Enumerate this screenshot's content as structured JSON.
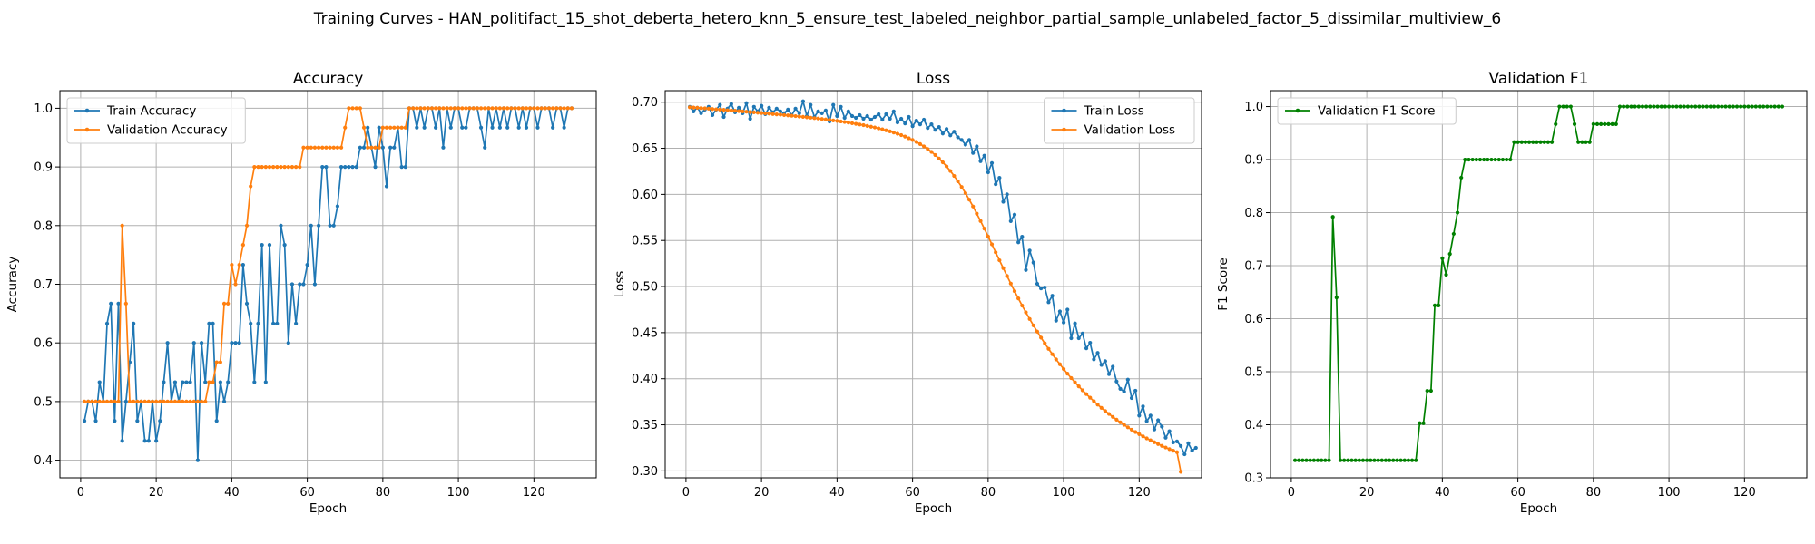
{
  "suptitle": "Training Curves - HAN_politifact_15_shot_deberta_hetero_knn_5_ensure_test_labeled_neighbor_partial_sample_unlabeled_factor_5_dissimilar_multiview_6",
  "colors": {
    "train": "#1f77b4",
    "val": "#ff7f0e",
    "f1": "#008000",
    "grid": "#b0b0b0"
  },
  "chart_data": [
    {
      "type": "line",
      "title": "Accuracy",
      "xlabel": "Epoch",
      "ylabel": "Accuracy",
      "xlim": [
        -5.5,
        136.5
      ],
      "ylim": [
        0.37,
        1.03
      ],
      "xticks": [
        0,
        20,
        40,
        60,
        80,
        100,
        120
      ],
      "yticks": [
        0.4,
        0.5,
        0.6,
        0.7,
        0.8,
        0.9,
        1.0
      ],
      "legend_loc": "upper-left",
      "x_start": 1,
      "series": [
        {
          "name": "Train Accuracy",
          "color": "#1f77b4",
          "values": [
            0.467,
            0.5,
            0.5,
            0.467,
            0.533,
            0.5,
            0.633,
            0.667,
            0.467,
            0.667,
            0.433,
            0.5,
            0.567,
            0.633,
            0.467,
            0.5,
            0.433,
            0.433,
            0.5,
            0.433,
            0.467,
            0.533,
            0.6,
            0.5,
            0.533,
            0.5,
            0.533,
            0.533,
            0.533,
            0.6,
            0.4,
            0.6,
            0.533,
            0.633,
            0.633,
            0.467,
            0.533,
            0.5,
            0.533,
            0.6,
            0.6,
            0.6,
            0.733,
            0.667,
            0.633,
            0.533,
            0.633,
            0.767,
            0.533,
            0.767,
            0.633,
            0.633,
            0.8,
            0.767,
            0.6,
            0.7,
            0.633,
            0.7,
            0.7,
            0.733,
            0.8,
            0.7,
            0.8,
            0.9,
            0.9,
            0.8,
            0.8,
            0.833,
            0.9,
            0.9,
            0.9,
            0.9,
            0.9,
            0.933,
            0.933,
            0.967,
            0.933,
            0.9,
            0.967,
            0.933,
            0.867,
            0.933,
            0.933,
            0.967,
            0.9,
            0.9,
            1.0,
            1.0,
            0.967,
            1.0,
            0.967,
            1.0,
            1.0,
            0.967,
            1.0,
            0.933,
            1.0,
            0.967,
            1.0,
            1.0,
            0.967,
            0.967,
            1.0,
            1.0,
            1.0,
            0.967,
            0.933,
            1.0,
            0.967,
            1.0,
            0.967,
            1.0,
            0.967,
            1.0,
            1.0,
            0.967,
            1.0,
            0.967,
            1.0,
            1.0,
            0.967,
            1.0,
            1.0,
            1.0,
            0.967,
            1.0,
            1.0,
            0.967,
            1.0,
            1.0
          ]
        },
        {
          "name": "Validation Accuracy",
          "color": "#ff7f0e",
          "values": [
            0.5,
            0.5,
            0.5,
            0.5,
            0.5,
            0.5,
            0.5,
            0.5,
            0.5,
            0.5,
            0.8,
            0.667,
            0.5,
            0.5,
            0.5,
            0.5,
            0.5,
            0.5,
            0.5,
            0.5,
            0.5,
            0.5,
            0.5,
            0.5,
            0.5,
            0.5,
            0.5,
            0.5,
            0.5,
            0.5,
            0.5,
            0.5,
            0.5,
            0.533,
            0.533,
            0.567,
            0.567,
            0.667,
            0.667,
            0.733,
            0.7,
            0.733,
            0.767,
            0.8,
            0.867,
            0.9,
            0.9,
            0.9,
            0.9,
            0.9,
            0.9,
            0.9,
            0.9,
            0.9,
            0.9,
            0.9,
            0.9,
            0.9,
            0.933,
            0.933,
            0.933,
            0.933,
            0.933,
            0.933,
            0.933,
            0.933,
            0.933,
            0.933,
            0.933,
            0.967,
            1.0,
            1.0,
            1.0,
            1.0,
            0.967,
            0.933,
            0.933,
            0.933,
            0.933,
            0.967,
            0.967,
            0.967,
            0.967,
            0.967,
            0.967,
            0.967,
            1.0,
            1.0,
            1.0,
            1.0,
            1.0,
            1.0,
            1.0,
            1.0,
            1.0,
            1.0,
            1.0,
            1.0,
            1.0,
            1.0,
            1.0,
            1.0,
            1.0,
            1.0,
            1.0,
            1.0,
            1.0,
            1.0,
            1.0,
            1.0,
            1.0,
            1.0,
            1.0,
            1.0,
            1.0,
            1.0,
            1.0,
            1.0,
            1.0,
            1.0,
            1.0,
            1.0,
            1.0,
            1.0,
            1.0,
            1.0,
            1.0,
            1.0,
            1.0,
            1.0
          ]
        }
      ]
    },
    {
      "type": "line",
      "title": "Loss",
      "xlabel": "Epoch",
      "ylabel": "Loss",
      "xlim": [
        -5.5,
        136.5
      ],
      "ylim": [
        0.2925,
        0.7125
      ],
      "xticks": [
        0,
        20,
        40,
        60,
        80,
        100,
        120
      ],
      "yticks": [
        0.3,
        0.35,
        0.4,
        0.45,
        0.5,
        0.55,
        0.6,
        0.65,
        0.7
      ],
      "legend_loc": "upper-right",
      "x_start": 1,
      "series": [
        {
          "name": "Train Loss",
          "color": "#1f77b4",
          "values": [
            0.695,
            0.69,
            0.694,
            0.688,
            0.692,
            0.695,
            0.686,
            0.692,
            0.697,
            0.684,
            0.693,
            0.698,
            0.689,
            0.694,
            0.688,
            0.699,
            0.682,
            0.695,
            0.69,
            0.696,
            0.687,
            0.694,
            0.689,
            0.693,
            0.69,
            0.688,
            0.692,
            0.686,
            0.693,
            0.688,
            0.701,
            0.685,
            0.697,
            0.684,
            0.69,
            0.688,
            0.691,
            0.679,
            0.697,
            0.685,
            0.695,
            0.683,
            0.69,
            0.685,
            0.683,
            0.686,
            0.682,
            0.685,
            0.681,
            0.684,
            0.687,
            0.681,
            0.687,
            0.682,
            0.69,
            0.678,
            0.682,
            0.677,
            0.684,
            0.674,
            0.68,
            0.676,
            0.681,
            0.672,
            0.676,
            0.67,
            0.673,
            0.666,
            0.671,
            0.664,
            0.668,
            0.662,
            0.659,
            0.654,
            0.659,
            0.645,
            0.652,
            0.636,
            0.642,
            0.624,
            0.634,
            0.611,
            0.618,
            0.592,
            0.6,
            0.571,
            0.578,
            0.548,
            0.554,
            0.518,
            0.539,
            0.526,
            0.503,
            0.498,
            0.499,
            0.483,
            0.49,
            0.463,
            0.473,
            0.461,
            0.475,
            0.444,
            0.46,
            0.444,
            0.449,
            0.433,
            0.439,
            0.421,
            0.428,
            0.415,
            0.419,
            0.405,
            0.413,
            0.397,
            0.389,
            0.386,
            0.399,
            0.379,
            0.387,
            0.36,
            0.37,
            0.354,
            0.36,
            0.345,
            0.355,
            0.348,
            0.336,
            0.343,
            0.331,
            0.332,
            0.327,
            0.318,
            0.33,
            0.322,
            0.325
          ]
        },
        {
          "name": "Validation Loss",
          "color": "#ff7f0e",
          "values": [
            0.6945,
            0.6942,
            0.6939,
            0.6936,
            0.6933,
            0.693,
            0.6926,
            0.6923,
            0.692,
            0.6917,
            0.6913,
            0.691,
            0.6907,
            0.6903,
            0.69,
            0.6897,
            0.6893,
            0.689,
            0.6886,
            0.6883,
            0.6879,
            0.6876,
            0.6872,
            0.6868,
            0.6865,
            0.6861,
            0.6857,
            0.6853,
            0.6849,
            0.6845,
            0.6841,
            0.6836,
            0.6832,
            0.6827,
            0.6823,
            0.6818,
            0.6813,
            0.6808,
            0.6802,
            0.6797,
            0.6791,
            0.6785,
            0.6779,
            0.6772,
            0.6765,
            0.6758,
            0.6751,
            0.6743,
            0.6734,
            0.6726,
            0.6716,
            0.6706,
            0.6695,
            0.6684,
            0.6671,
            0.6658,
            0.6643,
            0.6627,
            0.6609,
            0.659,
            0.6569,
            0.6546,
            0.652,
            0.6492,
            0.6461,
            0.6427,
            0.6389,
            0.6348,
            0.6303,
            0.6254,
            0.62,
            0.6142,
            0.608,
            0.6014,
            0.5943,
            0.5869,
            0.5791,
            0.5711,
            0.5628,
            0.5543,
            0.5458,
            0.5371,
            0.5285,
            0.52,
            0.5115,
            0.5032,
            0.495,
            0.4871,
            0.4794,
            0.472,
            0.4648,
            0.4578,
            0.4511,
            0.4446,
            0.4384,
            0.4324,
            0.4266,
            0.421,
            0.4157,
            0.4105,
            0.4055,
            0.4007,
            0.3961,
            0.3917,
            0.3874,
            0.3833,
            0.3794,
            0.3756,
            0.3719,
            0.3684,
            0.365,
            0.3618,
            0.3586,
            0.3556,
            0.3527,
            0.35,
            0.3473,
            0.3447,
            0.3422,
            0.3398,
            0.3375,
            0.3353,
            0.3332,
            0.3311,
            0.3291,
            0.3272,
            0.3254,
            0.3236,
            0.3219,
            0.3203,
            0.299
          ]
        }
      ]
    },
    {
      "type": "line",
      "title": "Validation F1",
      "xlabel": "Epoch",
      "ylabel": "F1 Score",
      "xlim": [
        -5.5,
        136.5
      ],
      "ylim": [
        0.3,
        1.03
      ],
      "xticks": [
        0,
        20,
        40,
        60,
        80,
        100,
        120
      ],
      "yticks": [
        0.3,
        0.4,
        0.5,
        0.6,
        0.7,
        0.8,
        0.9,
        1.0
      ],
      "legend_loc": "upper-left",
      "x_start": 1,
      "series": [
        {
          "name": "Validation F1 Score",
          "color": "#008000",
          "values": [
            0.333,
            0.333,
            0.333,
            0.333,
            0.333,
            0.333,
            0.333,
            0.333,
            0.333,
            0.333,
            0.792,
            0.64,
            0.333,
            0.333,
            0.333,
            0.333,
            0.333,
            0.333,
            0.333,
            0.333,
            0.333,
            0.333,
            0.333,
            0.333,
            0.333,
            0.333,
            0.333,
            0.333,
            0.333,
            0.333,
            0.333,
            0.333,
            0.333,
            0.403,
            0.403,
            0.464,
            0.464,
            0.625,
            0.625,
            0.714,
            0.683,
            0.722,
            0.76,
            0.8,
            0.866,
            0.9,
            0.9,
            0.9,
            0.9,
            0.9,
            0.9,
            0.9,
            0.9,
            0.9,
            0.9,
            0.9,
            0.9,
            0.9,
            0.933,
            0.933,
            0.933,
            0.933,
            0.933,
            0.933,
            0.933,
            0.933,
            0.933,
            0.933,
            0.933,
            0.967,
            1.0,
            1.0,
            1.0,
            1.0,
            0.967,
            0.933,
            0.933,
            0.933,
            0.933,
            0.967,
            0.967,
            0.967,
            0.967,
            0.967,
            0.967,
            0.967,
            1.0,
            1.0,
            1.0,
            1.0,
            1.0,
            1.0,
            1.0,
            1.0,
            1.0,
            1.0,
            1.0,
            1.0,
            1.0,
            1.0,
            1.0,
            1.0,
            1.0,
            1.0,
            1.0,
            1.0,
            1.0,
            1.0,
            1.0,
            1.0,
            1.0,
            1.0,
            1.0,
            1.0,
            1.0,
            1.0,
            1.0,
            1.0,
            1.0,
            1.0,
            1.0,
            1.0,
            1.0,
            1.0,
            1.0,
            1.0,
            1.0,
            1.0,
            1.0,
            1.0
          ]
        }
      ]
    }
  ]
}
